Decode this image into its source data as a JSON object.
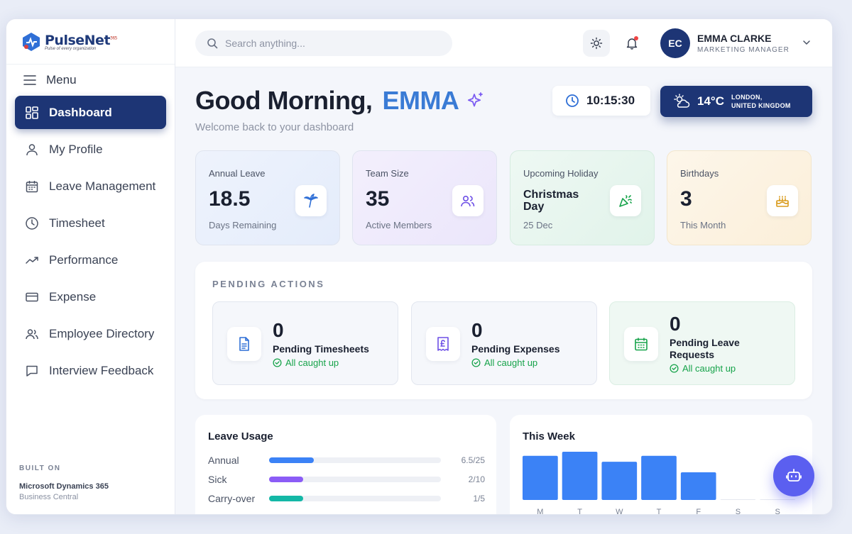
{
  "brand": {
    "name": "PulseNet",
    "suffix": "365",
    "tagline": "Pulse of every organization"
  },
  "sidebar": {
    "menu_label": "Menu",
    "items": [
      {
        "label": "Dashboard",
        "icon": "grid-icon"
      },
      {
        "label": "My Profile",
        "icon": "user-icon"
      },
      {
        "label": "Leave Management",
        "icon": "calendar-icon"
      },
      {
        "label": "Timesheet",
        "icon": "clock-icon"
      },
      {
        "label": "Performance",
        "icon": "trend-icon"
      },
      {
        "label": "Expense",
        "icon": "card-icon"
      },
      {
        "label": "Employee Directory",
        "icon": "users-icon"
      },
      {
        "label": "Interview Feedback",
        "icon": "chat-icon"
      }
    ],
    "footer": {
      "label": "BUILT ON",
      "line1": "Microsoft Dynamics 365",
      "line2": "Business Central"
    }
  },
  "header": {
    "search_placeholder": "Search anything...",
    "user": {
      "initials": "EC",
      "name": "EMMA CLARKE",
      "role": "MARKETING MANAGER"
    }
  },
  "main": {
    "greeting": "Good Morning,",
    "greeting_name": "EMMA",
    "welcome": "Welcome back to your dashboard",
    "time": "10:15:30",
    "weather": {
      "temp": "14°C",
      "city": "LONDON,",
      "country": "UNITED KINGDOM"
    },
    "stats": [
      {
        "label": "Annual Leave",
        "value": "18.5",
        "sub": "Days Remaining",
        "icon": "palm-tree-icon"
      },
      {
        "label": "Team Size",
        "value": "35",
        "sub": "Active Members",
        "icon": "users-icon"
      },
      {
        "label": "Upcoming Holiday",
        "value": "Christmas Day",
        "sub": "25 Dec",
        "icon": "party-popper-icon"
      },
      {
        "label": "Birthdays",
        "value": "3",
        "sub": "This Month",
        "icon": "cake-icon"
      }
    ],
    "pending": {
      "title": "PENDING ACTIONS",
      "items": [
        {
          "count": "0",
          "label": "Pending Timesheets",
          "status": "All caught up",
          "icon": "document-icon"
        },
        {
          "count": "0",
          "label": "Pending Expenses",
          "status": "All caught up",
          "icon": "receipt-pound-icon"
        },
        {
          "count": "0",
          "label": "Pending Leave Requests",
          "status": "All caught up",
          "icon": "calendar-icon"
        }
      ]
    },
    "leave_usage": {
      "title": "Leave Usage",
      "rows": [
        {
          "name": "Annual",
          "value": "6.5/25",
          "fraction": 0.26,
          "color": "#3b82f6"
        },
        {
          "name": "Sick",
          "value": "2/10",
          "fraction": 0.2,
          "color": "#8b5cf6"
        },
        {
          "name": "Carry-over",
          "value": "1/5",
          "fraction": 0.2,
          "color": "#14b8a6"
        }
      ]
    },
    "this_week": {
      "title": "This Week"
    }
  },
  "chart_data": {
    "type": "bar",
    "title": "This Week",
    "categories": [
      "M",
      "T",
      "W",
      "T",
      "F",
      "S",
      "S"
    ],
    "values": [
      7.5,
      8.2,
      6.5,
      7.5,
      4.7,
      0,
      0
    ],
    "ylim": [
      0,
      8.2
    ],
    "color": "#3b82f6",
    "grid": false
  }
}
